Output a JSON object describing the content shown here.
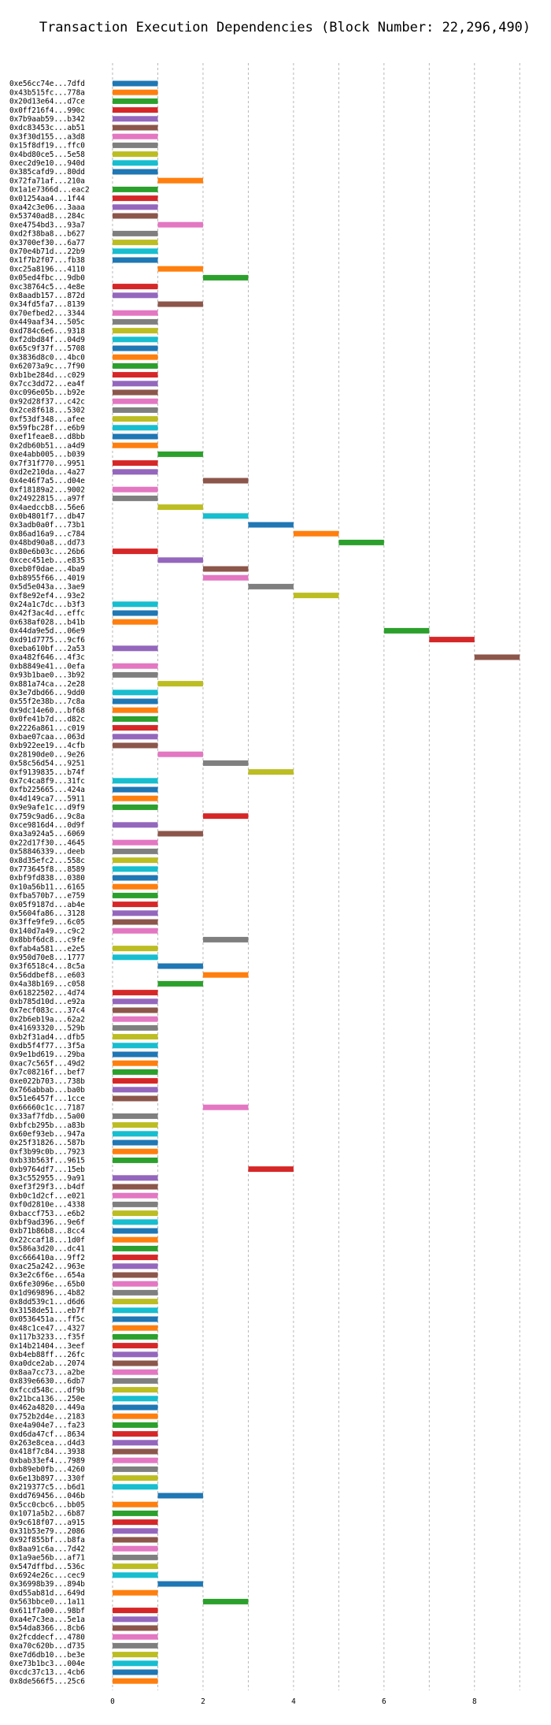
{
  "chart_data": {
    "type": "bar",
    "orientation": "horizontal",
    "title": "Transaction Execution Dependencies (Block Number: 22,296,490)",
    "xlabel": "",
    "ylabel": "",
    "xlim": [
      0,
      9.5
    ],
    "x_ticks": [
      "0",
      "2",
      "4",
      "6",
      "8"
    ],
    "x_gridlines": [
      0,
      1,
      2,
      3,
      4,
      5,
      6,
      7,
      8,
      9
    ],
    "grid": true,
    "bar_unit_width": 1,
    "palette": [
      "#1f77b4",
      "#ff7f0e",
      "#2ca02c",
      "#d62728",
      "#9467bd",
      "#8c564b",
      "#e377c2",
      "#7f7f7f",
      "#bcbd22",
      "#17becf"
    ],
    "transactions": [
      {
        "label": "0xe56cc74e...7dfd",
        "start": 0
      },
      {
        "label": "0x43b515fc...778a",
        "start": 0
      },
      {
        "label": "0x20d13e64...d7ce",
        "start": 0
      },
      {
        "label": "0x0ff216f4...990c",
        "start": 0
      },
      {
        "label": "0x7b9aab59...b342",
        "start": 0
      },
      {
        "label": "0xdc83453c...ab51",
        "start": 0
      },
      {
        "label": "0x3f30d155...a3d8",
        "start": 0
      },
      {
        "label": "0x15f8df19...ffc0",
        "start": 0
      },
      {
        "label": "0x4bd80ce5...5e58",
        "start": 0
      },
      {
        "label": "0xec2d9e10...940d",
        "start": 0
      },
      {
        "label": "0x385cafd9...80dd",
        "start": 0
      },
      {
        "label": "0x72fa71af...210a",
        "start": 1
      },
      {
        "label": "0x1a1e7366d...eac2",
        "start": 0
      },
      {
        "label": "0x01254aa4...1f44",
        "start": 0
      },
      {
        "label": "0xa42c3e06...3aaa",
        "start": 0
      },
      {
        "label": "0x53740ad8...284c",
        "start": 0
      },
      {
        "label": "0xe4754bd3...93a7",
        "start": 1
      },
      {
        "label": "0xd2f38ba8...b627",
        "start": 0
      },
      {
        "label": "0x3700ef30...6a77",
        "start": 0
      },
      {
        "label": "0x70e4b71d...22b9",
        "start": 0
      },
      {
        "label": "0x1f7b2f07...fb38",
        "start": 0
      },
      {
        "label": "0xc25a8196...4110",
        "start": 1
      },
      {
        "label": "0x05ed4fbc...9db0",
        "start": 2
      },
      {
        "label": "0xc38764c5...4e8e",
        "start": 0
      },
      {
        "label": "0x8aadb157...872d",
        "start": 0
      },
      {
        "label": "0x34fd5fa7...8139",
        "start": 1
      },
      {
        "label": "0x70efbed2...3344",
        "start": 0
      },
      {
        "label": "0x449aaf34...505c",
        "start": 0
      },
      {
        "label": "0xd784c6e6...9318",
        "start": 0
      },
      {
        "label": "0xf2dbd84f...04d9",
        "start": 0
      },
      {
        "label": "0x65c9f37f...5708",
        "start": 0
      },
      {
        "label": "0x3836d8c0...4bc0",
        "start": 0
      },
      {
        "label": "0x62073a9c...7f90",
        "start": 0
      },
      {
        "label": "0xb1be284d...c029",
        "start": 0
      },
      {
        "label": "0x7cc3dd72...ea4f",
        "start": 0
      },
      {
        "label": "0xc096e05b...b92e",
        "start": 0
      },
      {
        "label": "0x92d28f37...c42c",
        "start": 0
      },
      {
        "label": "0x2ce8f618...5302",
        "start": 0
      },
      {
        "label": "0xf53df348...afee",
        "start": 0
      },
      {
        "label": "0x59fbc28f...e6b9",
        "start": 0
      },
      {
        "label": "0xef1feae8...d8bb",
        "start": 0
      },
      {
        "label": "0x2db60b51...a4d9",
        "start": 0
      },
      {
        "label": "0xe4abb005...b039",
        "start": 1
      },
      {
        "label": "0x7f31f770...9951",
        "start": 0
      },
      {
        "label": "0xd2e210da...4a27",
        "start": 0
      },
      {
        "label": "0x4e46f7a5...d04e",
        "start": 2
      },
      {
        "label": "0xf18189a2...9002",
        "start": 0
      },
      {
        "label": "0x24922815...a97f",
        "start": 0
      },
      {
        "label": "0x4aedccb8...56e6",
        "start": 1
      },
      {
        "label": "0x0b4801f7...db47",
        "start": 2
      },
      {
        "label": "0x3adb0a0f...73b1",
        "start": 3
      },
      {
        "label": "0x86ad16a9...c784",
        "start": 4
      },
      {
        "label": "0x48bd90a8...dd73",
        "start": 5
      },
      {
        "label": "0x80e6b03c...26b6",
        "start": 0
      },
      {
        "label": "0xcec451eb...e835",
        "start": 1
      },
      {
        "label": "0xeb0f0dae...4ba9",
        "start": 2
      },
      {
        "label": "0xb8955f66...4019",
        "start": 2
      },
      {
        "label": "0x5d5e043a...3ae9",
        "start": 3
      },
      {
        "label": "0xf8e92ef4...93e2",
        "start": 4
      },
      {
        "label": "0x24a1c7dc...b3f3",
        "start": 0
      },
      {
        "label": "0x42f3ac4d...effc",
        "start": 0
      },
      {
        "label": "0x638af028...b41b",
        "start": 0
      },
      {
        "label": "0x44da9e5d...06e9",
        "start": 6
      },
      {
        "label": "0xd91d7775...9cf6",
        "start": 7
      },
      {
        "label": "0xeba610bf...2a53",
        "start": 0
      },
      {
        "label": "0xa482f646...4f3c",
        "start": 8
      },
      {
        "label": "0xb8849e41...0efa",
        "start": 0
      },
      {
        "label": "0x93b1bae0...3b92",
        "start": 0
      },
      {
        "label": "0x881a74ca...2e28",
        "start": 1
      },
      {
        "label": "0x3e7dbd66...9dd0",
        "start": 0
      },
      {
        "label": "0x55f2e38b...7c8a",
        "start": 0
      },
      {
        "label": "0x9dc14e60...bf68",
        "start": 0
      },
      {
        "label": "0x0fe41b7d...d82c",
        "start": 0
      },
      {
        "label": "0x2226a861...c019",
        "start": 0
      },
      {
        "label": "0xbae07caa...063d",
        "start": 0
      },
      {
        "label": "0xb922ee19...4cfb",
        "start": 0
      },
      {
        "label": "0x28190de0...9e26",
        "start": 1
      },
      {
        "label": "0x58c56d54...9251",
        "start": 2
      },
      {
        "label": "0xf9139835...b74f",
        "start": 3
      },
      {
        "label": "0x7c4ca8f9...31fc",
        "start": 0
      },
      {
        "label": "0xfb225665...424a",
        "start": 0
      },
      {
        "label": "0x4d149ca7...5911",
        "start": 0
      },
      {
        "label": "0x9e9afe1c...d9f9",
        "start": 0
      },
      {
        "label": "0x759c9ad6...9c8a",
        "start": 2
      },
      {
        "label": "0xce9816d4...0d9f",
        "start": 0
      },
      {
        "label": "0xa3a924a5...6069",
        "start": 1
      },
      {
        "label": "0x22d17f30...4645",
        "start": 0
      },
      {
        "label": "0x58846339...deeb",
        "start": 0
      },
      {
        "label": "0x8d35efc2...558c",
        "start": 0
      },
      {
        "label": "0x773645f8...8589",
        "start": 0
      },
      {
        "label": "0xbf9fd838...0380",
        "start": 0
      },
      {
        "label": "0x10a56b11...6165",
        "start": 0
      },
      {
        "label": "0xfba570b7...e759",
        "start": 0
      },
      {
        "label": "0x05f9187d...ab4e",
        "start": 0
      },
      {
        "label": "0x5604fa86...3128",
        "start": 0
      },
      {
        "label": "0x3ffe9fe9...6c05",
        "start": 0
      },
      {
        "label": "0x140d7a49...c9c2",
        "start": 0
      },
      {
        "label": "0x8bbf6dc8...c9fe",
        "start": 2
      },
      {
        "label": "0xfab4a581...e2e5",
        "start": 0
      },
      {
        "label": "0x950d70e8...1777",
        "start": 0
      },
      {
        "label": "0x3f6518c4...8c5a",
        "start": 1
      },
      {
        "label": "0x56ddbef8...e603",
        "start": 2
      },
      {
        "label": "0x4a38b169...c058",
        "start": 1
      },
      {
        "label": "0x61822502...4d74",
        "start": 0
      },
      {
        "label": "0xb785d10d...e92a",
        "start": 0
      },
      {
        "label": "0x7ecf083c...37c4",
        "start": 0
      },
      {
        "label": "0x2b6eb19a...62a2",
        "start": 0
      },
      {
        "label": "0x41693320...529b",
        "start": 0
      },
      {
        "label": "0xb2f31ad4...dfb5",
        "start": 0
      },
      {
        "label": "0xdb5f4f77...3f5a",
        "start": 0
      },
      {
        "label": "0x9e1bd619...29ba",
        "start": 0
      },
      {
        "label": "0xac7c565f...49d2",
        "start": 0
      },
      {
        "label": "0x7c08216f...bef7",
        "start": 0
      },
      {
        "label": "0xe022b703...738b",
        "start": 0
      },
      {
        "label": "0x766abbab...ba0b",
        "start": 0
      },
      {
        "label": "0x51e6457f...1cce",
        "start": 0
      },
      {
        "label": "0x66660c1c...7187",
        "start": 2
      },
      {
        "label": "0x33af7fdb...5a00",
        "start": 0
      },
      {
        "label": "0xbfcb295b...a83b",
        "start": 0
      },
      {
        "label": "0x60ef93eb...947a",
        "start": 0
      },
      {
        "label": "0x25f31826...587b",
        "start": 0
      },
      {
        "label": "0xf3b99c0b...7923",
        "start": 0
      },
      {
        "label": "0xb33b563f...9615",
        "start": 0
      },
      {
        "label": "0xb9764df7...15eb",
        "start": 3
      },
      {
        "label": "0x3c552955...9a91",
        "start": 0
      },
      {
        "label": "0xef3f29f3...b4df",
        "start": 0
      },
      {
        "label": "0xb0c1d2cf...e021",
        "start": 0
      },
      {
        "label": "0xf0d2810e...4338",
        "start": 0
      },
      {
        "label": "0xbaccf753...e6b2",
        "start": 0
      },
      {
        "label": "0xbf9ad396...9e6f",
        "start": 0
      },
      {
        "label": "0xb71b86b8...8cc4",
        "start": 0
      },
      {
        "label": "0x22ccaf18...1d0f",
        "start": 0
      },
      {
        "label": "0x586a3d20...dc41",
        "start": 0
      },
      {
        "label": "0xc666410a...9ff2",
        "start": 0
      },
      {
        "label": "0xac25a242...963e",
        "start": 0
      },
      {
        "label": "0x3e2c6f6e...654a",
        "start": 0
      },
      {
        "label": "0x6fe3096e...65b0",
        "start": 0
      },
      {
        "label": "0x1d969896...4b82",
        "start": 0
      },
      {
        "label": "0x8dd539c1...d6d6",
        "start": 0
      },
      {
        "label": "0x3158de51...eb7f",
        "start": 0
      },
      {
        "label": "0x0536451a...ff5c",
        "start": 0
      },
      {
        "label": "0x48c1ce47...4327",
        "start": 0
      },
      {
        "label": "0x117b3233...f35f",
        "start": 0
      },
      {
        "label": "0x14b21404...3eef",
        "start": 0
      },
      {
        "label": "0xb4eb88ff...26fc",
        "start": 0
      },
      {
        "label": "0xa0dce2ab...2074",
        "start": 0
      },
      {
        "label": "0x8aa7cc73...a2be",
        "start": 0
      },
      {
        "label": "0x839e6630...6db7",
        "start": 0
      },
      {
        "label": "0xfccd548c...df9b",
        "start": 0
      },
      {
        "label": "0x21bca136...250e",
        "start": 0
      },
      {
        "label": "0x462a4820...449a",
        "start": 0
      },
      {
        "label": "0x752b2d4e...2183",
        "start": 0
      },
      {
        "label": "0xe4a904e7...fa23",
        "start": 0
      },
      {
        "label": "0xd6da47cf...8634",
        "start": 0
      },
      {
        "label": "0x263e8cea...d4d3",
        "start": 0
      },
      {
        "label": "0x418f7c84...3938",
        "start": 0
      },
      {
        "label": "0xbab33ef4...7989",
        "start": 0
      },
      {
        "label": "0xb89eb0fb...4260",
        "start": 0
      },
      {
        "label": "0x6e13b897...330f",
        "start": 0
      },
      {
        "label": "0x219377c5...b6d1",
        "start": 0
      },
      {
        "label": "0xdd769456...046b",
        "start": 1
      },
      {
        "label": "0x5cc0cbc6...bb05",
        "start": 0
      },
      {
        "label": "0x1071a5b2...6b87",
        "start": 0
      },
      {
        "label": "0x9c618f07...a915",
        "start": 0
      },
      {
        "label": "0x31b53e79...2086",
        "start": 0
      },
      {
        "label": "0x92f855bf...b8fa",
        "start": 0
      },
      {
        "label": "0x8aa91c6a...7d42",
        "start": 0
      },
      {
        "label": "0x1a9ae56b...af71",
        "start": 0
      },
      {
        "label": "0x547dffbd...536c",
        "start": 0
      },
      {
        "label": "0x6924e26c...cec9",
        "start": 0
      },
      {
        "label": "0x36998b39...894b",
        "start": 1
      },
      {
        "label": "0xd55ab81d...649d",
        "start": 0
      },
      {
        "label": "0x563bbce0...1a11",
        "start": 2
      },
      {
        "label": "0x611f7a00...98bf",
        "start": 0
      },
      {
        "label": "0xa4e7c3ea...5e1a",
        "start": 0
      },
      {
        "label": "0x54da8366...8cb6",
        "start": 0
      },
      {
        "label": "0x2fcddecf...4780",
        "start": 0
      },
      {
        "label": "0xa70c620b...d735",
        "start": 0
      },
      {
        "label": "0xe7d6db10...be3e",
        "start": 0
      },
      {
        "label": "0xe73b1bc3...004e",
        "start": 0
      },
      {
        "label": "0xcdc37c13...4cb6",
        "start": 0
      },
      {
        "label": "0x8de566f5...25c6",
        "start": 0
      }
    ]
  }
}
